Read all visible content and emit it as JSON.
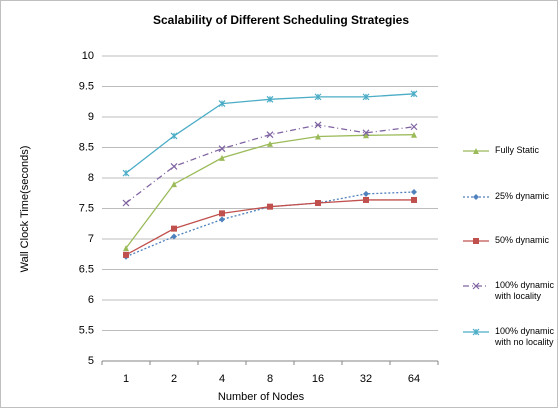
{
  "chart_data": {
    "type": "line",
    "title": "Scalability of Different Scheduling Strategies",
    "x_label": "Number of Nodes",
    "y_label": "Wall Clock Time(seconds)",
    "categories": [
      "1",
      "2",
      "4",
      "8",
      "16",
      "32",
      "64"
    ],
    "ylim": [
      5,
      10
    ],
    "yticks": [
      5,
      5.5,
      6,
      6.5,
      7,
      7.5,
      8,
      8.5,
      9,
      9.5,
      10
    ],
    "grid": true,
    "legend": "right",
    "series": [
      {
        "name": "Fully Static",
        "color": "#9bbb59",
        "values": [
          6.85,
          7.9,
          8.33,
          8.56,
          8.68,
          8.7,
          8.71
        ]
      },
      {
        "name": "25% dynamic",
        "color": "#4f81bd",
        "values": [
          6.71,
          7.04,
          7.32,
          7.53,
          7.59,
          7.74,
          7.77
        ]
      },
      {
        "name": "50% dynamic",
        "color": "#c0504d",
        "values": [
          6.74,
          7.17,
          7.42,
          7.53,
          7.59,
          7.64,
          7.64
        ]
      },
      {
        "name": "100% dynamic with locality",
        "color": "#8064a2",
        "values": [
          7.59,
          8.19,
          8.48,
          8.71,
          8.87,
          8.74,
          8.84
        ]
      },
      {
        "name": "100% dynamic with no locality",
        "color": "#4bacc6",
        "values": [
          8.08,
          8.69,
          9.22,
          9.29,
          9.33,
          9.33,
          9.38
        ]
      }
    ]
  }
}
